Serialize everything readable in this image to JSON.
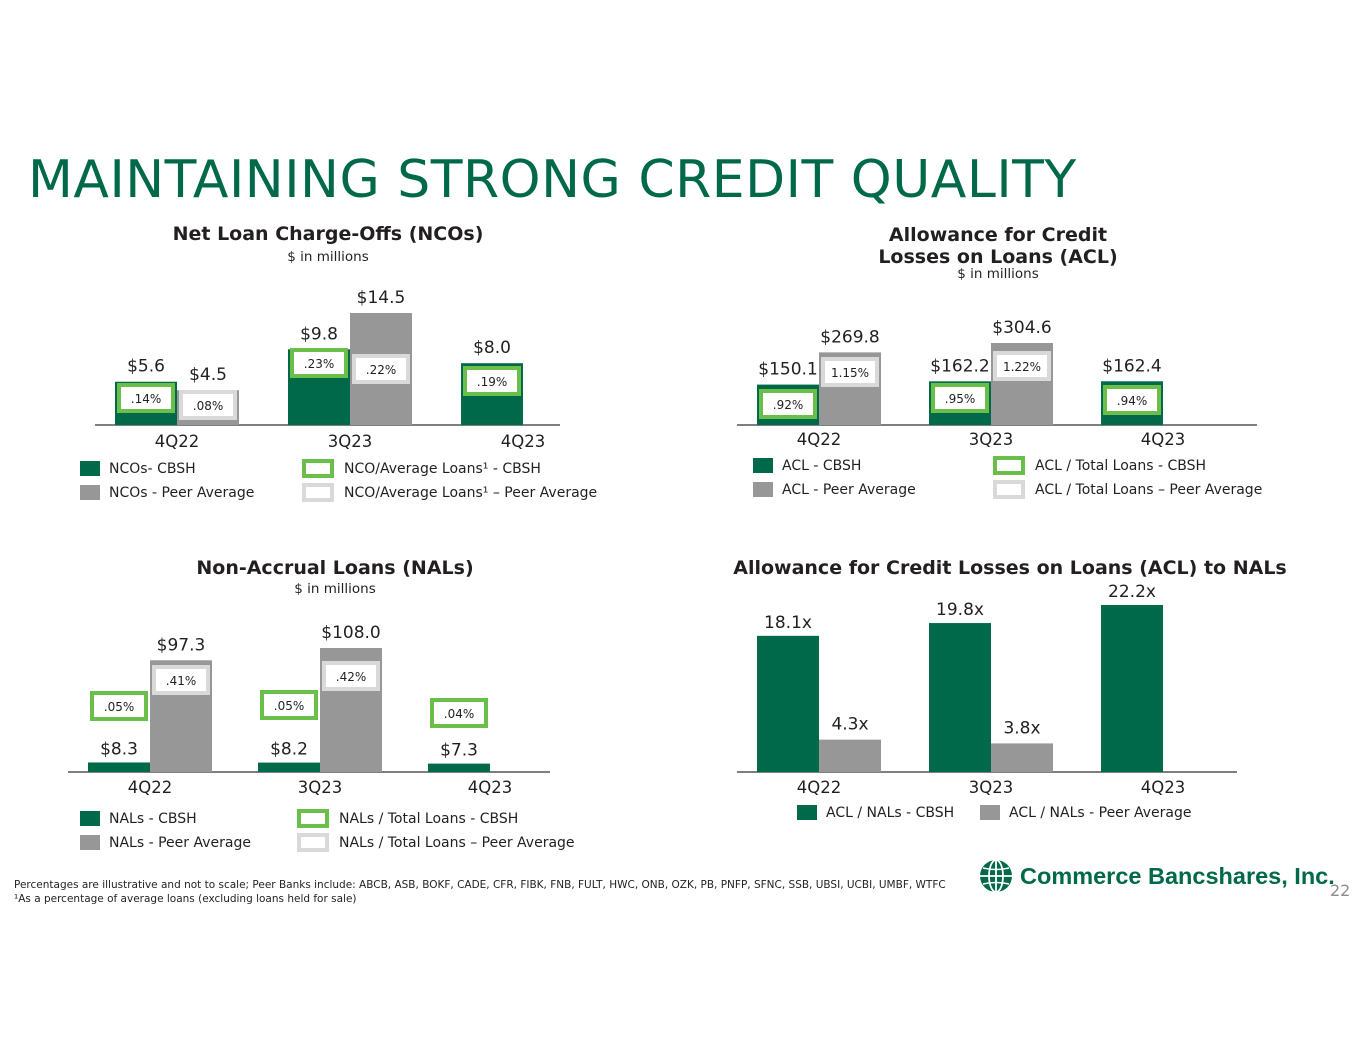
{
  "title": "MAINTAINING STRONG CREDIT QUALITY",
  "colors": {
    "green": "#00694a",
    "gray": "#979797",
    "dark_gray": "#8c8c8c",
    "light_green": "#6abf4b",
    "light_gray": "#d9d9d9",
    "text": "#231f20"
  },
  "chart_data": [
    {
      "type": "bar",
      "title": "Net Loan Charge-Offs (NCOs)",
      "subtitle": "$ in millions",
      "categories": [
        "4Q22",
        "3Q23",
        "4Q23"
      ],
      "series": [
        {
          "name": "NCOs- CBSH",
          "values": [
            5.6,
            9.8,
            8.0
          ],
          "labels": [
            "$5.6",
            "$9.8",
            "$8.0"
          ]
        },
        {
          "name": "NCOs - Peer Average",
          "values": [
            4.5,
            14.5,
            null
          ],
          "labels": [
            "$4.5",
            "$14.5",
            ""
          ]
        }
      ],
      "ratios": [
        {
          "name": "NCO/Average Loans¹ - CBSH",
          "values": [
            ".14%",
            ".23%",
            ".19%"
          ]
        },
        {
          "name": "NCO/Average Loans¹ – Peer Average",
          "values": [
            ".08%",
            ".22%",
            ""
          ]
        }
      ],
      "ylim": [
        0,
        14.5
      ],
      "legend_position": "bottom"
    },
    {
      "type": "bar",
      "title": "Allowance for Credit Losses on Loans (ACL)",
      "title_lines": [
        "Allowance for Credit",
        "Losses on Loans (ACL)"
      ],
      "subtitle": "$ in millions",
      "categories": [
        "4Q22",
        "3Q23",
        "4Q23"
      ],
      "series": [
        {
          "name": "ACL - CBSH",
          "values": [
            150.1,
            162.2,
            162.4
          ],
          "labels": [
            "$150.1",
            "$162.2",
            "$162.4"
          ]
        },
        {
          "name": "ACL - Peer Average",
          "values": [
            269.8,
            304.6,
            null
          ],
          "labels": [
            "$269.8",
            "$304.6",
            ""
          ]
        }
      ],
      "ratios": [
        {
          "name": "ACL / Total Loans - CBSH",
          "values": [
            ".92%",
            ".95%",
            ".94%"
          ]
        },
        {
          "name": "ACL / Total Loans – Peer Average",
          "values": [
            "1.15%",
            "1.22%",
            ""
          ]
        }
      ],
      "ylim": [
        0,
        304.6
      ],
      "legend_position": "bottom"
    },
    {
      "type": "bar",
      "title": "Non-Accrual Loans (NALs)",
      "subtitle": "$ in millions",
      "categories": [
        "4Q22",
        "3Q23",
        "4Q23"
      ],
      "series": [
        {
          "name": "NALs - CBSH",
          "values": [
            8.3,
            8.2,
            7.3
          ],
          "labels": [
            "$8.3",
            "$8.2",
            "$7.3"
          ]
        },
        {
          "name": "NALs - Peer Average",
          "values": [
            97.3,
            108.0,
            null
          ],
          "labels": [
            "$97.3",
            "$108.0",
            ""
          ]
        }
      ],
      "ratios": [
        {
          "name": "NALs / Total Loans - CBSH",
          "values": [
            ".05%",
            ".05%",
            ".04%"
          ]
        },
        {
          "name": "NALs / Total Loans – Peer Average",
          "values": [
            ".41%",
            ".42%",
            ""
          ]
        }
      ],
      "ylim": [
        0,
        108.0
      ],
      "legend_position": "bottom"
    },
    {
      "type": "bar",
      "title": "Allowance for Credit Losses on Loans (ACL) to NALs",
      "subtitle": "",
      "categories": [
        "4Q22",
        "3Q23",
        "4Q23"
      ],
      "series": [
        {
          "name": "ACL / NALs - CBSH",
          "values": [
            18.1,
            19.8,
            22.2
          ],
          "labels": [
            "18.1x",
            "19.8x",
            "22.2x"
          ]
        },
        {
          "name": "ACL / NALs - Peer Average",
          "values": [
            4.3,
            3.8,
            null
          ],
          "labels": [
            "4.3x",
            "3.8x",
            ""
          ]
        }
      ],
      "ylim": [
        0,
        22.2
      ],
      "legend_position": "bottom"
    }
  ],
  "footnote": {
    "line1": "Percentages are illustrative and not to scale; Peer Banks include: ABCB, ASB, BOKF, CADE, CFR, FIBK, FNB, FULT, HWC, ONB, OZK, PB, PNFP, SFNC, SSB, UBSI, UCBI, UMBF, WTFC",
    "line2": "¹As a percentage of average loans (excluding loans held for sale)"
  },
  "logo": {
    "text": "Commerce Bancshares, Inc.",
    "icon": "globe-icon"
  },
  "page_number": "22"
}
